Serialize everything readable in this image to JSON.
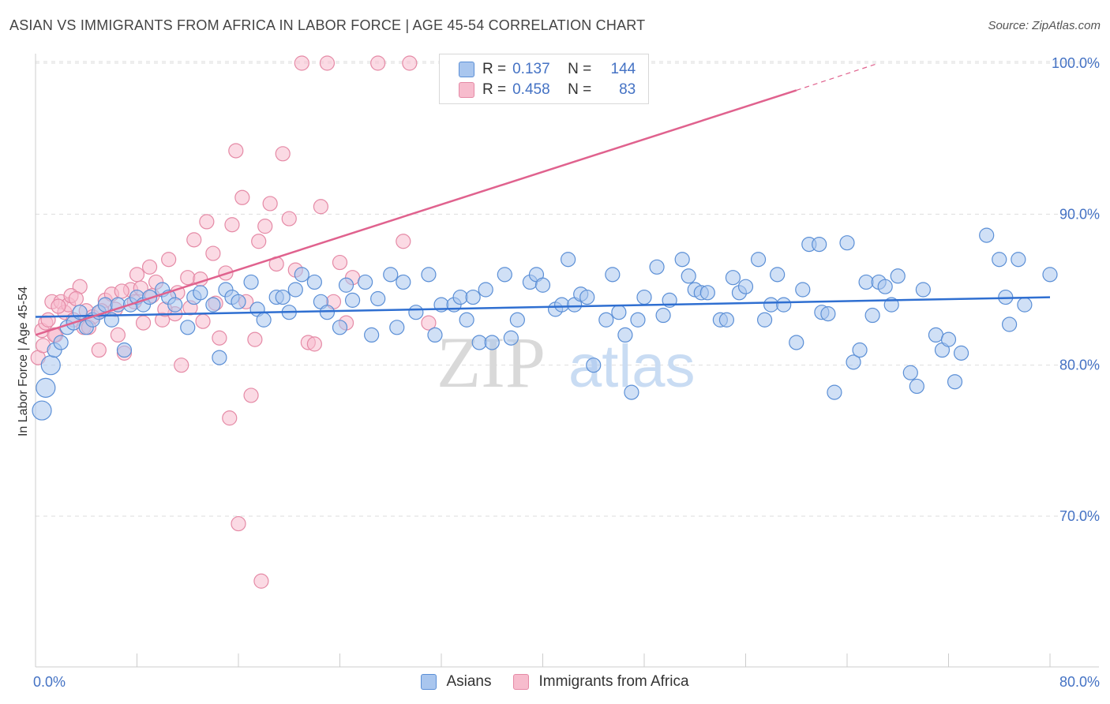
{
  "title": "ASIAN VS IMMIGRANTS FROM AFRICA IN LABOR FORCE | AGE 45-54 CORRELATION CHART",
  "source": "Source: ZipAtlas.com",
  "watermark": {
    "zip": "ZIP",
    "atlas": "atlas"
  },
  "legend_top": {
    "rows": [
      {
        "r_label": "R =",
        "r_value": "0.137",
        "n_label": "N =",
        "n_value": "144"
      },
      {
        "r_label": "R =",
        "r_value": "0.458",
        "n_label": "N =",
        "n_value": "83"
      }
    ]
  },
  "colors": {
    "asians_fill": "#a9c6ee",
    "asians_stroke": "#5b8fd6",
    "asians_line": "#2f6fd1",
    "africa_fill": "#f7bccd",
    "africa_stroke": "#e58aa6",
    "africa_line": "#e0628e",
    "grid": "#dddddd",
    "axis_text": "#4472c4"
  },
  "chart_data": {
    "type": "scatter",
    "title": "ASIAN VS IMMIGRANTS FROM AFRICA IN LABOR FORCE | AGE 45-54 CORRELATION CHART",
    "xlabel": "",
    "ylabel": "In Labor Force | Age 45-54",
    "xlim": [
      0,
      80
    ],
    "ylim": [
      60,
      101.5
    ],
    "x_tick_labels": [
      "0.0%",
      "80.0%"
    ],
    "y_ticks": [
      70,
      80,
      90,
      100
    ],
    "y_tick_labels": [
      "70.0%",
      "80.0%",
      "90.0%",
      "100.0%"
    ],
    "grid": true,
    "series": [
      {
        "name": "Asians",
        "r": 0.137,
        "n": 144,
        "trend": {
          "x": [
            0,
            80
          ],
          "y": [
            83.2,
            84.5
          ]
        },
        "points": [
          [
            0.5,
            77
          ],
          [
            0.8,
            78.5
          ],
          [
            1.2,
            80
          ],
          [
            1.5,
            81
          ],
          [
            2,
            81.5
          ],
          [
            2.5,
            82.5
          ],
          [
            3,
            82.8
          ],
          [
            3.5,
            83.5
          ],
          [
            4,
            82.5
          ],
          [
            4.5,
            83
          ],
          [
            5,
            83.5
          ],
          [
            5.5,
            84
          ],
          [
            6,
            83
          ],
          [
            6.5,
            84
          ],
          [
            7,
            81
          ],
          [
            7.5,
            84
          ],
          [
            8,
            84.5
          ],
          [
            8.5,
            84
          ],
          [
            9,
            84.5
          ],
          [
            10,
            85
          ],
          [
            10.5,
            84.5
          ],
          [
            11,
            84
          ],
          [
            12,
            82.5
          ],
          [
            12.5,
            84.5
          ],
          [
            13,
            84.8
          ],
          [
            14,
            84
          ],
          [
            14.5,
            80.5
          ],
          [
            15,
            85
          ],
          [
            15.5,
            84.5
          ],
          [
            16,
            84.2
          ],
          [
            17,
            85.5
          ],
          [
            17.5,
            83.7
          ],
          [
            18,
            83
          ],
          [
            19,
            84.5
          ],
          [
            19.5,
            84.5
          ],
          [
            20,
            83.5
          ],
          [
            20.5,
            85
          ],
          [
            21,
            86
          ],
          [
            22,
            85.5
          ],
          [
            22.5,
            84.2
          ],
          [
            23,
            83.5
          ],
          [
            24,
            82.5
          ],
          [
            24.5,
            85.3
          ],
          [
            25,
            84.3
          ],
          [
            26,
            85.5
          ],
          [
            26.5,
            82
          ],
          [
            27,
            84.4
          ],
          [
            28,
            86
          ],
          [
            28.5,
            82.5
          ],
          [
            29,
            85.5
          ],
          [
            30,
            83.5
          ],
          [
            31,
            86
          ],
          [
            31.5,
            82
          ],
          [
            32,
            84
          ],
          [
            33,
            84
          ],
          [
            33.5,
            84.5
          ],
          [
            34,
            83
          ],
          [
            34.5,
            84.5
          ],
          [
            35,
            81.5
          ],
          [
            35.5,
            85
          ],
          [
            36,
            81.5
          ],
          [
            37,
            86
          ],
          [
            37.5,
            81.8
          ],
          [
            38,
            83
          ],
          [
            39,
            85.5
          ],
          [
            39.5,
            86
          ],
          [
            40,
            85.3
          ],
          [
            41,
            83.7
          ],
          [
            41.5,
            84
          ],
          [
            42,
            87
          ],
          [
            42.5,
            84
          ],
          [
            43,
            84.7
          ],
          [
            43.5,
            84.5
          ],
          [
            44,
            80
          ],
          [
            45,
            83
          ],
          [
            45.5,
            86
          ],
          [
            46,
            83.5
          ],
          [
            46.5,
            82
          ],
          [
            47,
            78.2
          ],
          [
            47.5,
            83
          ],
          [
            48,
            84.5
          ],
          [
            49,
            86.5
          ],
          [
            49.5,
            83.3
          ],
          [
            50,
            84.3
          ],
          [
            51,
            87
          ],
          [
            51.5,
            85.9
          ],
          [
            52,
            85
          ],
          [
            52.5,
            84.8
          ],
          [
            53,
            84.8
          ],
          [
            54,
            83
          ],
          [
            54.5,
            83
          ],
          [
            55,
            85.8
          ],
          [
            55.5,
            84.8
          ],
          [
            56,
            85.2
          ],
          [
            57,
            87
          ],
          [
            57.5,
            83
          ],
          [
            58,
            84
          ],
          [
            58.5,
            86
          ],
          [
            59,
            84
          ],
          [
            60,
            81.5
          ],
          [
            60.5,
            85
          ],
          [
            61,
            88
          ],
          [
            61.8,
            88
          ],
          [
            62,
            83.5
          ],
          [
            62.5,
            83.4
          ],
          [
            63,
            78.2
          ],
          [
            64,
            88.1
          ],
          [
            64.5,
            80.2
          ],
          [
            65,
            81
          ],
          [
            65.5,
            85.5
          ],
          [
            66,
            83.3
          ],
          [
            66.5,
            85.5
          ],
          [
            67,
            85.2
          ],
          [
            67.5,
            84
          ],
          [
            68,
            85.9
          ],
          [
            69,
            79.5
          ],
          [
            69.5,
            78.6
          ],
          [
            70,
            85
          ],
          [
            71,
            82
          ],
          [
            71.5,
            81
          ],
          [
            72,
            81.7
          ],
          [
            72.5,
            78.9
          ],
          [
            73,
            80.8
          ],
          [
            75,
            88.6
          ],
          [
            76,
            87
          ],
          [
            76.5,
            84.5
          ],
          [
            76.8,
            82.7
          ],
          [
            77.5,
            87
          ],
          [
            78,
            84
          ],
          [
            80,
            86
          ]
        ]
      },
      {
        "name": "Immigrants from Africa",
        "r": 0.458,
        "n": 83,
        "trend": {
          "x": [
            0,
            60
          ],
          "y": [
            82,
            98.2
          ]
        },
        "trend_dashed": {
          "x": [
            60,
            66.5
          ],
          "y": [
            98.2,
            100
          ]
        },
        "points": [
          [
            0.2,
            80.5
          ],
          [
            0.5,
            82.3
          ],
          [
            0.8,
            82.8
          ],
          [
            1,
            83
          ],
          [
            1.3,
            84.2
          ],
          [
            1.6,
            82
          ],
          [
            2,
            84.2
          ],
          [
            2.3,
            83.5
          ],
          [
            2.6,
            84
          ],
          [
            3,
            83
          ],
          [
            3.5,
            85.2
          ],
          [
            3.8,
            82.5
          ],
          [
            4,
            83.6
          ],
          [
            4.5,
            83.2
          ],
          [
            5,
            81
          ],
          [
            5.5,
            84.3
          ],
          [
            6,
            84.7
          ],
          [
            6.5,
            82
          ],
          [
            7,
            80.8
          ],
          [
            7.5,
            85
          ],
          [
            8,
            86
          ],
          [
            8.5,
            82.8
          ],
          [
            9,
            86.5
          ],
          [
            9.5,
            85.5
          ],
          [
            10,
            83
          ],
          [
            10.5,
            87
          ],
          [
            11,
            83.4
          ],
          [
            11.5,
            80
          ],
          [
            12,
            85.8
          ],
          [
            12.5,
            88.3
          ],
          [
            13,
            85.7
          ],
          [
            13.5,
            89.5
          ],
          [
            14,
            87.4
          ],
          [
            14.5,
            81.8
          ],
          [
            15,
            86.1
          ],
          [
            15.3,
            76.5
          ],
          [
            15.5,
            89.3
          ],
          [
            15.8,
            94.2
          ],
          [
            16,
            69.5
          ],
          [
            16.3,
            91.1
          ],
          [
            16.6,
            84.2
          ],
          [
            17,
            78
          ],
          [
            17.3,
            81.7
          ],
          [
            17.6,
            88.2
          ],
          [
            17.8,
            65.7
          ],
          [
            18.1,
            89.2
          ],
          [
            18.5,
            90.7
          ],
          [
            19,
            86.7
          ],
          [
            19.5,
            94
          ],
          [
            20,
            89.7
          ],
          [
            20.5,
            86.3
          ],
          [
            21,
            100
          ],
          [
            21.5,
            81.5
          ],
          [
            22,
            81.4
          ],
          [
            22.5,
            90.5
          ],
          [
            23,
            100
          ],
          [
            23.5,
            84.2
          ],
          [
            24,
            86.8
          ],
          [
            24.5,
            82.8
          ],
          [
            25,
            85.8
          ],
          [
            27,
            100
          ],
          [
            29,
            88.2
          ],
          [
            29.5,
            100
          ],
          [
            31,
            82.8
          ],
          [
            36,
            100
          ],
          [
            1.5,
            82
          ],
          [
            2.8,
            84.6
          ],
          [
            4.2,
            82.5
          ],
          [
            5.2,
            83.6
          ],
          [
            6.3,
            83.7
          ],
          [
            6.8,
            84.9
          ],
          [
            7.8,
            84.2
          ],
          [
            8.3,
            85.1
          ],
          [
            9.2,
            84.6
          ],
          [
            10.2,
            83.7
          ],
          [
            11.2,
            84.8
          ],
          [
            12.2,
            83.8
          ],
          [
            13.2,
            82.9
          ],
          [
            14.2,
            84.1
          ],
          [
            0.6,
            81.3
          ],
          [
            1.8,
            83.9
          ],
          [
            3.2,
            84.4
          ]
        ]
      }
    ]
  },
  "legend_bottom": {
    "items": [
      "Asians",
      "Immigrants from Africa"
    ]
  }
}
